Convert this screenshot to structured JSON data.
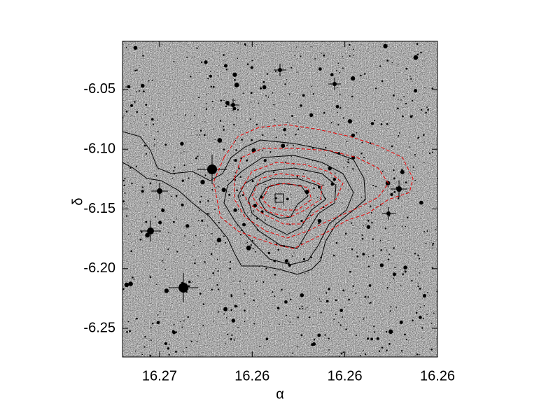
{
  "chart_data": {
    "type": "contour",
    "x_label": "α",
    "y_label": "δ",
    "xlim": [
      16.2659,
      16.2625
    ],
    "ylim": [
      -6.274,
      -6.0096
    ],
    "xticks": [
      {
        "value": 16.2655,
        "label": "16.27"
      },
      {
        "value": 16.2645,
        "label": "16.26"
      },
      {
        "value": 16.2635,
        "label": "16.26"
      },
      {
        "value": 16.2625,
        "label": "16.26"
      }
    ],
    "yticks": [
      -6.05,
      {
        "value": -6.1,
        "label": "-6.10"
      },
      -6.15,
      {
        "value": -6.2,
        "label": "-6.20"
      },
      -6.25
    ]
  }
}
